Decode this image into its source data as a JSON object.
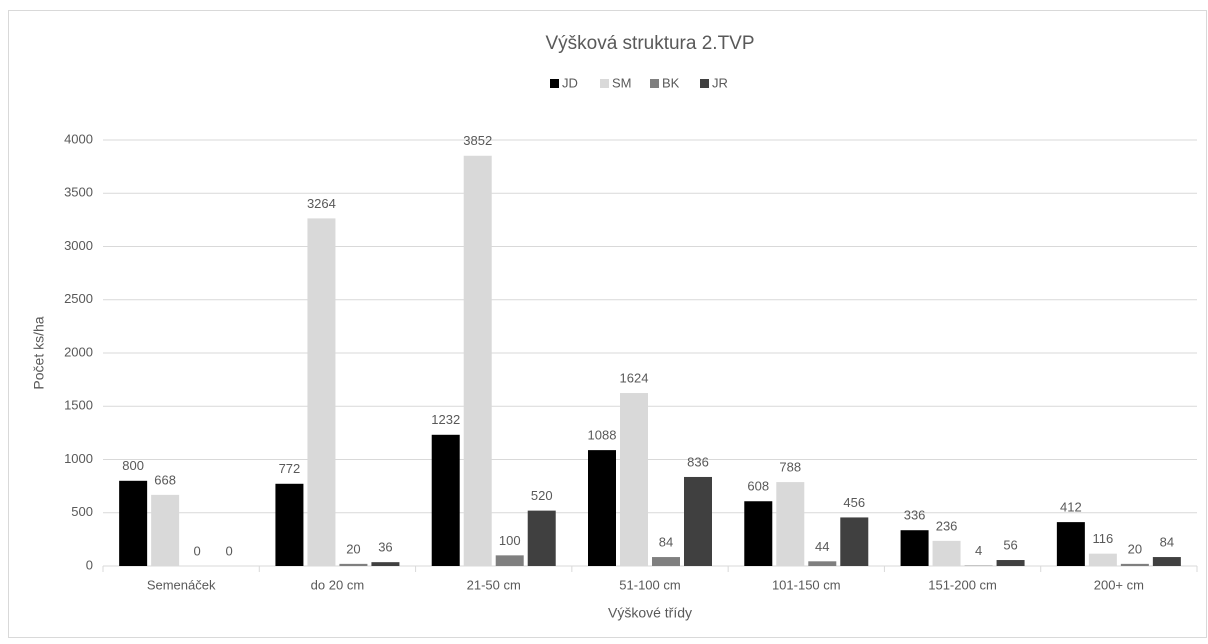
{
  "chart_data": {
    "type": "bar",
    "title": "Výšková struktura 2.TVP",
    "x_label": "Výškové třídy",
    "y_label": "Počet ks/ha",
    "categories": [
      "Semenáček",
      "do 20 cm",
      "21-50 cm",
      "51-100 cm",
      "101-150 cm",
      "151-200 cm",
      "200+ cm"
    ],
    "series": [
      {
        "name": "JD",
        "color": "#000000",
        "values": [
          800,
          772,
          1232,
          1088,
          608,
          336,
          412
        ]
      },
      {
        "name": "SM",
        "color": "#d9d9d9",
        "values": [
          668,
          3264,
          3852,
          1624,
          788,
          236,
          116
        ]
      },
      {
        "name": "BK",
        "color": "#7f7f7f",
        "values": [
          0,
          20,
          100,
          84,
          44,
          4,
          20
        ]
      },
      {
        "name": "JR",
        "color": "#404040",
        "values": [
          0,
          36,
          520,
          836,
          456,
          56,
          84
        ]
      }
    ],
    "ylim": [
      0,
      4000
    ],
    "yticks": [
      0,
      500,
      1000,
      1500,
      2000,
      2500,
      3000,
      3500,
      4000
    ],
    "grid": true,
    "legend": "top"
  }
}
